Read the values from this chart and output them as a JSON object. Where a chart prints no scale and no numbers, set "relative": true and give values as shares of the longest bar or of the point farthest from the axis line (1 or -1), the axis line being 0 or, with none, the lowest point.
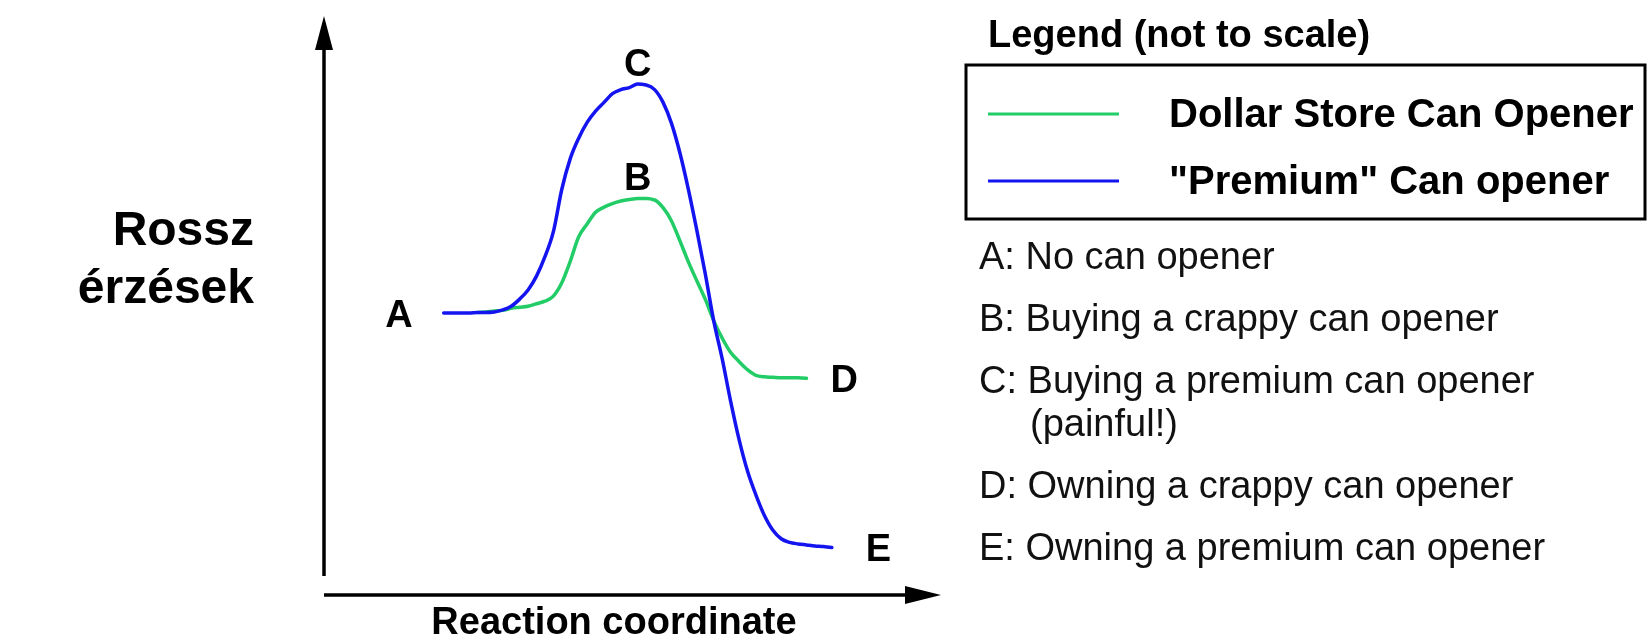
{
  "chart_data": {
    "type": "line",
    "relative": true,
    "xlabel": "Reaction coordinate",
    "ylabel": "Rossz érzések",
    "legend_title": "Legend (not to scale)",
    "legend": "right",
    "categories": [
      null,
      null,
      null,
      null,
      null,
      null,
      null,
      null,
      null,
      null,
      null,
      null,
      null,
      null,
      null,
      null,
      null,
      null,
      null,
      null,
      null,
      null,
      null,
      null,
      null,
      null,
      null,
      null,
      null,
      null,
      null,
      null,
      null,
      null,
      null,
      null,
      null,
      null,
      null,
      null,
      null,
      null,
      null,
      null,
      null,
      null,
      null
    ],
    "series": [
      {
        "name": "Dollar Store Can Opener",
        "color": "#22cc66",
        "values": [
          null,
          null,
          null,
          null,
          0.553,
          0.554,
          0.556,
          0.557,
          0.561,
          0.563,
          0.565,
          0.57,
          0.575,
          0.585,
          0.611,
          0.653,
          0.701,
          0.726,
          0.749,
          0.759,
          0.766,
          0.771,
          0.774,
          0.776,
          0.776,
          0.773,
          0.758,
          0.732,
          0.693,
          0.652,
          0.615,
          0.579,
          0.537,
          0.503,
          0.475,
          0.457,
          0.441,
          0.43,
          0.427,
          0.426,
          0.425,
          0.425,
          0.425,
          0.424,
          null,
          null,
          null
        ]
      },
      {
        "name": "\"Premium\" Can opener",
        "color": "#1414f0",
        "values": [
          0.552,
          0.552,
          0.552,
          0.552,
          0.553,
          0.553,
          0.554,
          0.558,
          0.565,
          0.579,
          0.597,
          0.624,
          0.662,
          0.711,
          0.794,
          0.854,
          0.894,
          0.925,
          0.947,
          0.964,
          0.981,
          0.989,
          0.993,
          1,
          0.998,
          0.989,
          0.964,
          0.923,
          0.865,
          0.794,
          0.714,
          0.629,
          0.537,
          0.463,
          0.38,
          0.305,
          0.243,
          0.196,
          0.156,
          0.127,
          0.11,
          0.103,
          0.1,
          0.098,
          0.096,
          0.095,
          0.093
        ]
      }
    ],
    "annotations": [
      {
        "text": "B",
        "y": 0.776
      },
      {
        "text": "C",
        "y": 1
      },
      "A",
      "D",
      "E",
      "A: No can opener",
      "B: Buying a crappy can opener",
      "C: Buying a premium can opener (painful!)",
      "D: Owning a crappy can opener",
      "E: Owning a premium can opener"
    ]
  }
}
